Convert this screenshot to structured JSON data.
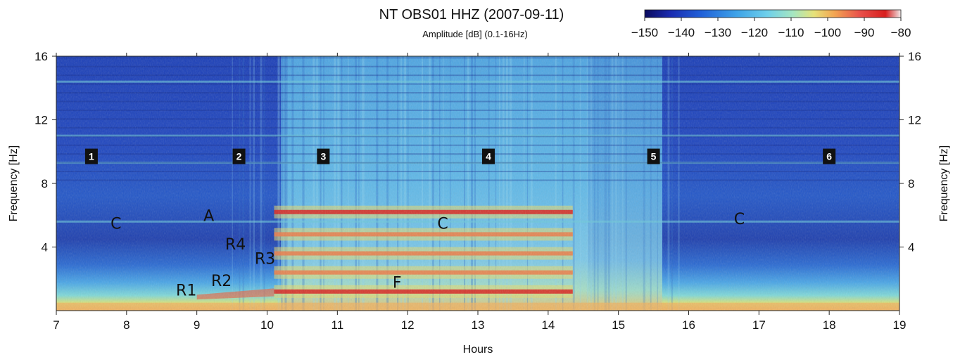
{
  "chart_data": {
    "type": "heatmap",
    "title": "NT OBS01 HHZ (2007-09-11)",
    "subtitle": "Amplitude [dB] (0.1-16Hz)",
    "xlabel": "Hours",
    "ylabel": "Frequency [Hz]",
    "ylabel_right": "Frequency [Hz]",
    "xlim": [
      7,
      19
    ],
    "ylim": [
      0,
      16
    ],
    "x_ticks": [
      "7",
      "8",
      "9",
      "10",
      "11",
      "12",
      "13",
      "14",
      "15",
      "16",
      "17",
      "18",
      "19"
    ],
    "y_ticks": [
      {
        "value": 4,
        "label": "4"
      },
      {
        "value": 8,
        "label": "8"
      },
      {
        "value": 12,
        "label": "12"
      },
      {
        "value": 16,
        "label": "16"
      }
    ],
    "colorbar": {
      "range": [
        -150,
        -80
      ],
      "ticks": [
        "−150",
        "−140",
        "−130",
        "−120",
        "−110",
        "−100",
        "−90",
        "−80"
      ],
      "colors": [
        "#0a0a5e",
        "#1a2bb0",
        "#2060d8",
        "#3ea3e8",
        "#6fd0ea",
        "#a6e6c0",
        "#e6e27a",
        "#f2a552",
        "#e8504a",
        "#d81e1e",
        "#f0e8e8"
      ]
    },
    "segments": [
      {
        "label": "1",
        "hour": 7.5,
        "freq": 9.7
      },
      {
        "label": "2",
        "hour": 9.6,
        "freq": 9.7
      },
      {
        "label": "3",
        "hour": 10.8,
        "freq": 9.7
      },
      {
        "label": "4",
        "hour": 13.15,
        "freq": 9.7
      },
      {
        "label": "5",
        "hour": 15.5,
        "freq": 9.7
      },
      {
        "label": "6",
        "hour": 18.0,
        "freq": 9.7
      }
    ],
    "annotations": [
      {
        "label": "C",
        "hour": 7.85,
        "freq": 5.5
      },
      {
        "label": "A",
        "hour": 9.17,
        "freq": 6.0
      },
      {
        "label": "R4",
        "hour": 9.55,
        "freq": 4.2
      },
      {
        "label": "R3",
        "hour": 9.97,
        "freq": 3.3
      },
      {
        "label": "R2",
        "hour": 9.35,
        "freq": 1.9
      },
      {
        "label": "R1",
        "hour": 8.85,
        "freq": 1.3
      },
      {
        "label": "F",
        "hour": 11.85,
        "freq": 1.8
      },
      {
        "label": "C",
        "hour": 12.5,
        "freq": 5.5
      },
      {
        "label": "C",
        "hour": 16.72,
        "freq": 5.8
      }
    ],
    "spectral_features": {
      "active_interval_hours": [
        10.1,
        14.35
      ],
      "noisy_interval_hours": [
        9.4,
        15.9
      ],
      "harmonic_lines_hz": [
        1.2,
        2.4,
        3.6,
        4.8,
        6.2
      ],
      "background_lines_hz": [
        5.6,
        9.3,
        11.0,
        14.4
      ]
    }
  }
}
